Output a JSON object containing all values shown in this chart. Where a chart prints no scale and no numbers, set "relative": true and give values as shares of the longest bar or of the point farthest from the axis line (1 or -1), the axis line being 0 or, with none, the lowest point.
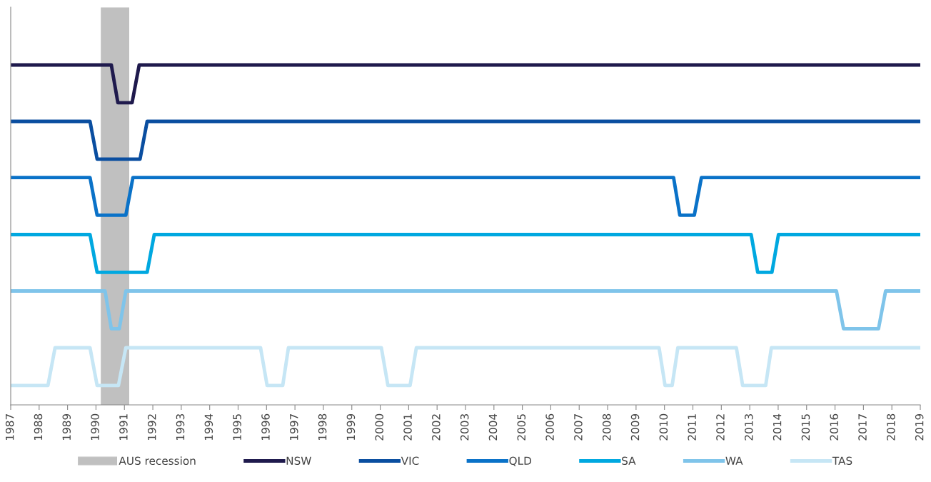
{
  "chart_data": {
    "type": "line",
    "relative": true,
    "xlim": [
      1987,
      2019
    ],
    "xticks": [
      1987,
      1988,
      1989,
      1990,
      1991,
      1992,
      1993,
      1994,
      1995,
      1996,
      1997,
      1998,
      1999,
      2000,
      2001,
      2002,
      2003,
      2004,
      2005,
      2006,
      2007,
      2008,
      2009,
      2010,
      2011,
      2012,
      2013,
      2014,
      2015,
      2016,
      2017,
      2018,
      2019
    ],
    "grid": false,
    "legend": "bottom",
    "tick_labels": "x",
    "line_style": "solid",
    "marker": "none",
    "bands": [
      {
        "axis": "x",
        "from": 1990.17,
        "to": 1991.17,
        "label": "AUS recession",
        "color": "#c0c0c0"
      }
    ],
    "series": [
      {
        "name": "NSW",
        "color": "#1f1a4d",
        "x": [
          1987,
          1990.54,
          1990.77,
          1991.27,
          1991.52,
          2019
        ],
        "values": [
          1.0,
          1.0,
          0.889,
          0.889,
          1.0,
          1.0
        ]
      },
      {
        "name": "VIC",
        "color": "#0a4ea0",
        "x": [
          1987,
          1989.79,
          1990.04,
          1991.55,
          1991.8,
          2019
        ],
        "values": [
          0.834,
          0.834,
          0.723,
          0.723,
          0.834,
          0.834
        ]
      },
      {
        "name": "QLD",
        "color": "#0a72c8",
        "x": [
          1987,
          1989.79,
          1990.04,
          1991.05,
          1991.3,
          2010.32,
          2010.54,
          2011.05,
          2011.3,
          2019
        ],
        "values": [
          0.669,
          0.669,
          0.558,
          0.558,
          0.669,
          0.669,
          0.558,
          0.558,
          0.669,
          0.669
        ]
      },
      {
        "name": "SA",
        "color": "#00a8e0",
        "x": [
          1987,
          1989.79,
          1990.04,
          1991.8,
          1992.05,
          2013.05,
          2013.28,
          2013.78,
          2014.01,
          2019
        ],
        "values": [
          0.501,
          0.501,
          0.39,
          0.39,
          0.501,
          0.501,
          0.39,
          0.39,
          0.501,
          0.501
        ]
      },
      {
        "name": "WA",
        "color": "#7fc4ea",
        "x": [
          1987,
          1990.32,
          1990.54,
          1990.82,
          1991.05,
          2016.05,
          2016.3,
          2017.53,
          2017.78,
          2019
        ],
        "values": [
          0.335,
          0.335,
          0.224,
          0.224,
          0.335,
          0.335,
          0.224,
          0.224,
          0.335,
          0.335
        ]
      },
      {
        "name": "TAS",
        "color": "#c6e6f5",
        "x": [
          1987,
          1988.31,
          1988.56,
          1989.79,
          1990.04,
          1990.79,
          1991.05,
          1995.79,
          1996.02,
          1996.57,
          1996.77,
          2000.04,
          2000.27,
          2001.05,
          2001.27,
          2009.81,
          2010.02,
          2010.27,
          2010.47,
          2012.53,
          2012.75,
          2013.56,
          2013.76,
          2019
        ],
        "values": [
          0.057,
          0.057,
          0.168,
          0.168,
          0.057,
          0.057,
          0.168,
          0.168,
          0.057,
          0.057,
          0.168,
          0.168,
          0.057,
          0.057,
          0.168,
          0.168,
          0.057,
          0.057,
          0.168,
          0.168,
          0.057,
          0.057,
          0.168,
          0.168
        ]
      }
    ]
  }
}
